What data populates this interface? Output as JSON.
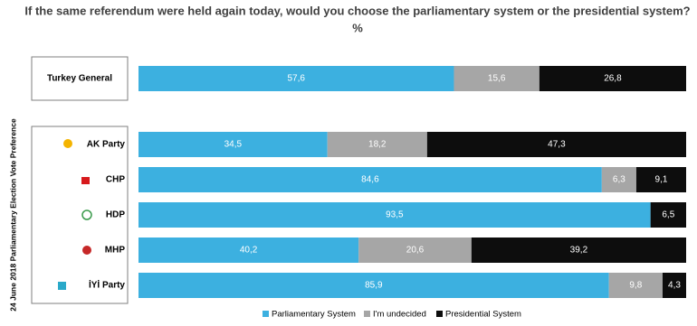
{
  "chart_data": {
    "type": "stacked-bar-horizontal",
    "title": "If the same referendum were held again today, would you choose the parliamentary system or the presidential system?",
    "subtitle": "%",
    "group_label": "24 June 2018 Parliamentary Election Vote Preference",
    "categories": [
      "Turkey General",
      "AK Party",
      "CHP",
      "HDP",
      "MHP",
      "İYİ Party"
    ],
    "xlim": [
      0,
      100
    ],
    "series": [
      {
        "name": "Parliamentary System",
        "color": "#3cb0e0",
        "values": [
          57.6,
          34.5,
          84.6,
          93.5,
          40.2,
          85.9
        ],
        "value_labels": [
          "57,6",
          "34,5",
          "84,6",
          "93,5",
          "40,2",
          "85,9"
        ]
      },
      {
        "name": "I'm undecided",
        "color": "#a6a6a6",
        "values": [
          15.6,
          18.2,
          6.3,
          0,
          20.6,
          9.8
        ],
        "value_labels": [
          "15,6",
          "18,2",
          "6,3",
          null,
          "20,6",
          "9,8"
        ]
      },
      {
        "name": "Presidential System",
        "color": "#0d0d0d",
        "values": [
          26.8,
          47.3,
          9.1,
          6.5,
          39.2,
          4.3
        ],
        "value_labels": [
          "26,8",
          "47,3",
          "9,1",
          "6,5",
          "39,2",
          "4,3"
        ]
      }
    ]
  }
}
